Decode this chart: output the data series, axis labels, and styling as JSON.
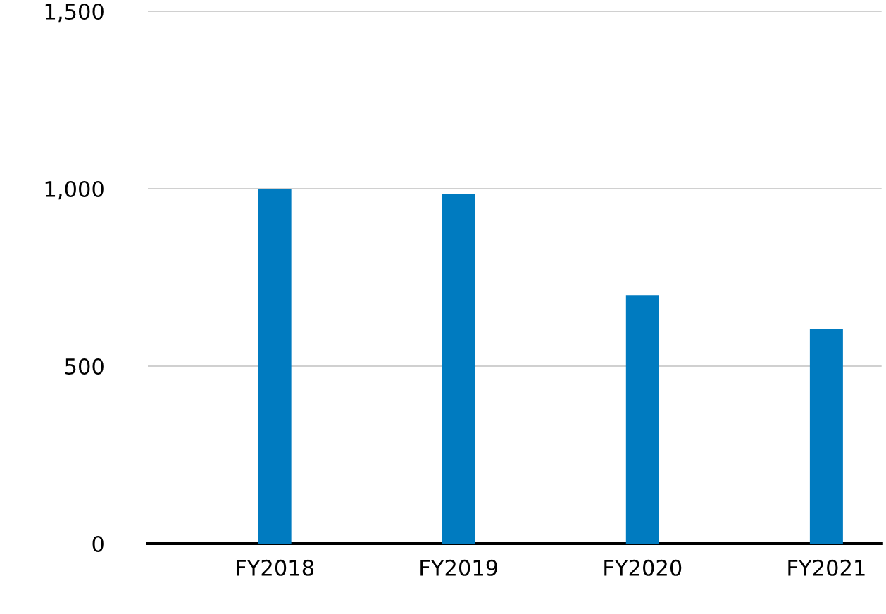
{
  "chart_data": {
    "type": "bar",
    "categories": [
      "FY2018",
      "FY2019",
      "FY2020",
      "FY2021"
    ],
    "values": [
      1000,
      985,
      700,
      605
    ],
    "color": "#007bc0",
    "ylim": [
      0,
      1500
    ],
    "yticks": [
      0,
      500,
      {
        "value": 1000,
        "label": "1,000"
      },
      {
        "value": 1500,
        "label": "1,500"
      }
    ],
    "grid": "y"
  }
}
